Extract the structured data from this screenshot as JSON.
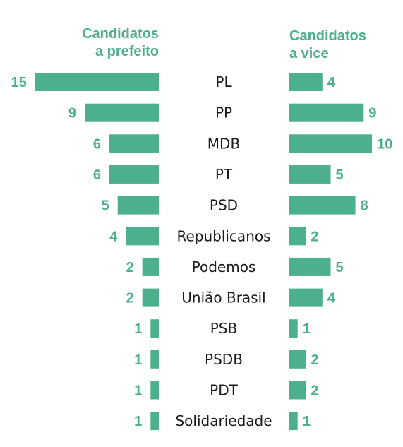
{
  "chart_data": {
    "type": "bar",
    "layout": "butterfly",
    "left_header": [
      "Candidatos",
      "a prefeito"
    ],
    "right_header": [
      "Candidatos",
      "a vice"
    ],
    "categories": [
      "PL",
      "PP",
      "MDB",
      "PT",
      "PSD",
      "Republicanos",
      "Podemos",
      "União Brasil",
      "PSB",
      "PSDB",
      "PDT",
      "Solidariedade"
    ],
    "series": [
      {
        "values": [
          15,
          9,
          6,
          6,
          5,
          4,
          2,
          2,
          1,
          1,
          1,
          1
        ]
      },
      {
        "values": [
          4,
          9,
          10,
          5,
          8,
          2,
          5,
          4,
          1,
          2,
          2,
          1
        ]
      }
    ],
    "bar_color": "#4caf8e",
    "text_color": "#4caf8e"
  }
}
